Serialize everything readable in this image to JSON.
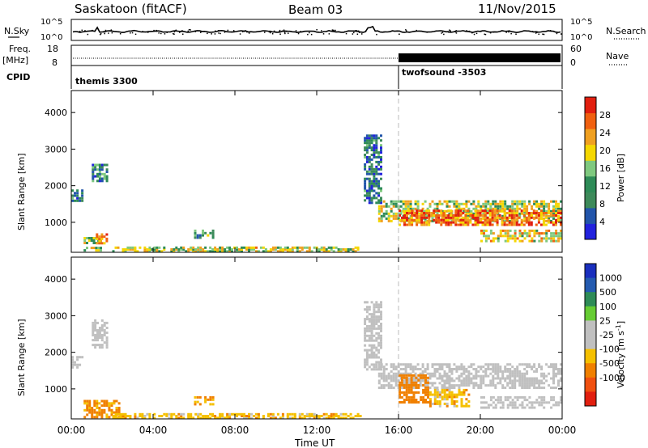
{
  "header": {
    "station": "Saskatoon (fitACF)",
    "beam": "Beam 03",
    "date": "11/Nov/2015"
  },
  "noise_panel": {
    "left_label": "N.Sky",
    "left_ticks": [
      "10^5",
      "10^0"
    ],
    "right_label": "N.Search",
    "right_ticks": [
      "10^5",
      "10^0"
    ]
  },
  "freq_panel": {
    "left_label": "Freq.",
    "left_unit": "[MHz]",
    "left_ticks": [
      "18",
      "8"
    ],
    "right_label": "Nave",
    "right_ticks": [
      "60",
      "0"
    ],
    "nave_switch_time_h": 16.0
  },
  "cpid_panel": {
    "label": "CPID",
    "modes": [
      {
        "name": "themis 3300",
        "start_h": 0
      },
      {
        "name": "twofsound -3503",
        "start_h": 16
      }
    ]
  },
  "colors": {
    "power_scale": [
      "#2222dd",
      "#2255aa",
      "#3d8a5a",
      "#2e8b57",
      "#7fc97f",
      "#f5d700",
      "#f0a020",
      "#f06010",
      "#e21f0f"
    ],
    "velocity_scale": [
      "#1a2fbe",
      "#245bb0",
      "#2e8b57",
      "#66cc33",
      "#c0c0c0",
      "#c0c0c0",
      "#f5c000",
      "#f08000",
      "#f05010",
      "#e21f0f"
    ],
    "gray": "#c8c8c8",
    "trace": "#000000"
  },
  "chart_data": [
    {
      "type": "heatmap",
      "name": "power",
      "xlabel": "Time UT",
      "ylabel": "Slant Range [km]",
      "xlim": [
        0,
        24
      ],
      "ylim": [
        180,
        4600
      ],
      "x_ticks": [
        "00:00",
        "04:00",
        "08:00",
        "12:00",
        "16:00",
        "20:00",
        "00:00"
      ],
      "x_tick_values": [
        0,
        4,
        8,
        12,
        16,
        20,
        24
      ],
      "y_ticks": [
        "1000",
        "2000",
        "3000",
        "4000"
      ],
      "y_tick_values": [
        1000,
        2000,
        3000,
        4000
      ],
      "colorbar": {
        "label": "Power [dB]",
        "ticks": [
          "4",
          "8",
          "12",
          "16",
          "20",
          "24",
          "28"
        ],
        "tick_values": [
          4,
          8,
          12,
          16,
          20,
          24,
          28
        ],
        "range": [
          0,
          32
        ]
      },
      "echo_regions": [
        {
          "t0": 0.0,
          "t1": 0.6,
          "r0": 1550,
          "r1": 1900,
          "value": 8
        },
        {
          "t0": 1.0,
          "t1": 1.8,
          "r0": 2100,
          "r1": 2600,
          "value": 10
        },
        {
          "t0": 0.6,
          "t1": 1.5,
          "r0": 200,
          "r1": 600,
          "value": 16
        },
        {
          "t0": 1.2,
          "t1": 1.8,
          "r0": 400,
          "r1": 700,
          "value": 24
        },
        {
          "t0": 2.0,
          "t1": 14.2,
          "r0": 190,
          "r1": 340,
          "value": 18
        },
        {
          "t0": 6.0,
          "t1": 7.0,
          "r0": 550,
          "r1": 800,
          "value": 12
        },
        {
          "t0": 14.3,
          "t1": 15.2,
          "r0": 1500,
          "r1": 3400,
          "value": 8
        },
        {
          "t0": 15.0,
          "t1": 24.0,
          "r0": 1000,
          "r1": 1600,
          "value": 18
        },
        {
          "t0": 16.0,
          "t1": 24.0,
          "r0": 900,
          "r1": 1350,
          "value": 26
        },
        {
          "t0": 20.0,
          "t1": 24.0,
          "r0": 450,
          "r1": 800,
          "value": 20
        }
      ]
    },
    {
      "type": "heatmap",
      "name": "velocity",
      "xlabel": "Time UT",
      "ylabel": "Slant Range [km]",
      "xlim": [
        0,
        24
      ],
      "ylim": [
        180,
        4600
      ],
      "x_ticks": [
        "00:00",
        "04:00",
        "08:00",
        "12:00",
        "16:00",
        "20:00",
        "00:00"
      ],
      "x_tick_values": [
        0,
        4,
        8,
        12,
        16,
        20,
        24
      ],
      "y_ticks": [
        "1000",
        "2000",
        "3000",
        "4000"
      ],
      "y_tick_values": [
        1000,
        2000,
        3000,
        4000
      ],
      "colorbar": {
        "label": "Velocity [m s",
        "label_sup": "-1",
        "label_end": "]",
        "ticks": [
          "1000",
          "500",
          "100",
          "25",
          "-25",
          "-100",
          "-500",
          "-1000"
        ],
        "tick_values": [
          1000,
          500,
          100,
          25,
          -25,
          -100,
          -500,
          -1000
        ]
      },
      "echo_regions": [
        {
          "t0": 0.0,
          "t1": 0.6,
          "r0": 1550,
          "r1": 1900,
          "value": 0
        },
        {
          "t0": 1.0,
          "t1": 1.8,
          "r0": 2100,
          "r1": 2900,
          "value": 0
        },
        {
          "t0": 0.6,
          "t1": 2.4,
          "r0": 200,
          "r1": 700,
          "value": -150
        },
        {
          "t0": 2.0,
          "t1": 14.2,
          "r0": 190,
          "r1": 340,
          "value": -60
        },
        {
          "t0": 6.0,
          "t1": 7.0,
          "r0": 550,
          "r1": 800,
          "value": -120
        },
        {
          "t0": 14.3,
          "t1": 15.2,
          "r0": 1500,
          "r1": 3400,
          "value": 0
        },
        {
          "t0": 15.0,
          "t1": 24.0,
          "r0": 1000,
          "r1": 1700,
          "value": 0
        },
        {
          "t0": 16.0,
          "t1": 17.5,
          "r0": 600,
          "r1": 1400,
          "value": -300
        },
        {
          "t0": 17.5,
          "t1": 19.5,
          "r0": 500,
          "r1": 1000,
          "value": -60
        },
        {
          "t0": 20.0,
          "t1": 24.0,
          "r0": 450,
          "r1": 800,
          "value": 0
        }
      ]
    }
  ]
}
